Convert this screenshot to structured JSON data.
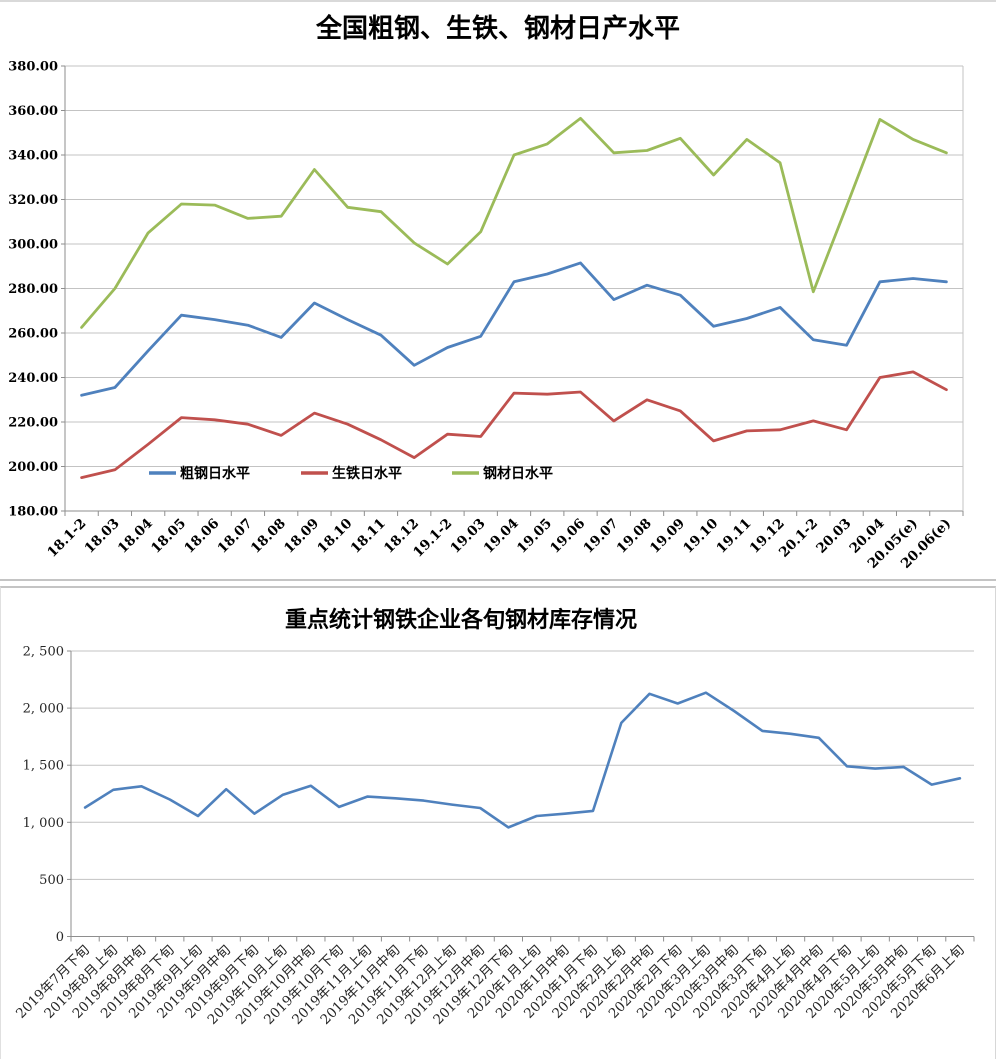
{
  "chart_data": [
    {
      "type": "line",
      "title": "全国粗钢、生铁、钢材日产水平",
      "categories": [
        "18.1-2",
        "18.03",
        "18.04",
        "18.05",
        "18.06",
        "18.07",
        "18.08",
        "18.09",
        "18.10",
        "18.11",
        "18.12",
        "19.1-2",
        "19.03",
        "19.04",
        "19.05",
        "19.06",
        "19.07",
        "19.08",
        "19.09",
        "19.10",
        "19.11",
        "19.12",
        "20.1-2",
        "20.03",
        "20.04",
        "20.05(e)",
        "20.06(e)"
      ],
      "series": [
        {
          "name": "粗钢日水平",
          "color": "#4F81BD",
          "values": [
            232,
            235.5,
            252,
            268,
            266,
            263.5,
            258,
            273.5,
            266,
            259,
            245.5,
            253.5,
            258.5,
            283,
            286.5,
            291.5,
            275,
            281.5,
            277,
            263,
            266.5,
            271.5,
            257,
            254.5,
            283,
            284.5,
            283
          ]
        },
        {
          "name": "生铁日水平",
          "color": "#C0504D",
          "values": [
            195,
            198.5,
            210,
            222,
            221,
            219,
            214,
            224,
            219,
            212,
            204,
            214.5,
            213.5,
            233,
            232.5,
            233.5,
            220.5,
            230,
            225,
            211.5,
            216,
            216.5,
            220.5,
            216.5,
            240,
            242.5,
            234.5
          ]
        },
        {
          "name": "钢材日水平",
          "color": "#9BBB59",
          "values": [
            262.5,
            280,
            305,
            318,
            317.5,
            311.5,
            312.5,
            333.5,
            316.5,
            314.5,
            300.5,
            291,
            305.5,
            340,
            345,
            356.5,
            341,
            342,
            347.5,
            331,
            347,
            336.5,
            278.5,
            317,
            356,
            347,
            341
          ]
        }
      ],
      "ylim": [
        180,
        380
      ],
      "ytick_step": 20,
      "ytick_labels": [
        "380.00",
        "360.00",
        "340.00",
        "320.00",
        "300.00",
        "280.00",
        "260.00",
        "240.00",
        "220.00",
        "200.00",
        "180.00"
      ],
      "grid": true,
      "legend_position": "bottom-inside",
      "legend_labels": [
        "粗钢日水平",
        "生铁日水平",
        "钢材日水平"
      ]
    },
    {
      "type": "line",
      "title": "重点统计钢铁企业各旬钢材库存情况",
      "categories": [
        "2019年7月下旬",
        "2019年8月上旬",
        "2019年8月中旬",
        "2019年8月下旬",
        "2019年9月上旬",
        "2019年9月中旬",
        "2019年9月下旬",
        "2019年10月上旬",
        "2019年10月中旬",
        "2019年10月下旬",
        "2019年11月上旬",
        "2019年11月中旬",
        "2019年11月下旬",
        "2019年12月上旬",
        "2019年12月中旬",
        "2019年12月下旬",
        "2020年1月上旬",
        "2020年1月中旬",
        "2020年1月下旬",
        "2020年2月上旬",
        "2020年2月中旬",
        "2020年2月下旬",
        "2020年3月上旬",
        "2020年3月中旬",
        "2020年3月下旬",
        "2020年4月上旬",
        "2020年4月中旬",
        "2020年4月下旬",
        "2020年5月上旬",
        "2020年5月中旬",
        "2020年5月下旬",
        "2020年6月上旬"
      ],
      "series": [
        {
          "name": "钢材库存",
          "color": "#4F81BD",
          "values": [
            1130,
            1285,
            1315,
            1200,
            1055,
            1290,
            1075,
            1240,
            1320,
            1135,
            1225,
            1210,
            1190,
            1155,
            1125,
            955,
            1055,
            1075,
            1100,
            1870,
            2125,
            2040,
            2135,
            1975,
            1800,
            1775,
            1740,
            1490,
            1470,
            1485,
            1330,
            1385
          ]
        }
      ],
      "ylim": [
        0,
        2500
      ],
      "ytick_step": 500,
      "ytick_labels": [
        "2, 500",
        "2, 000",
        "1, 500",
        "1, 000",
        "500",
        "0"
      ],
      "grid": true,
      "legend_position": "none"
    }
  ]
}
